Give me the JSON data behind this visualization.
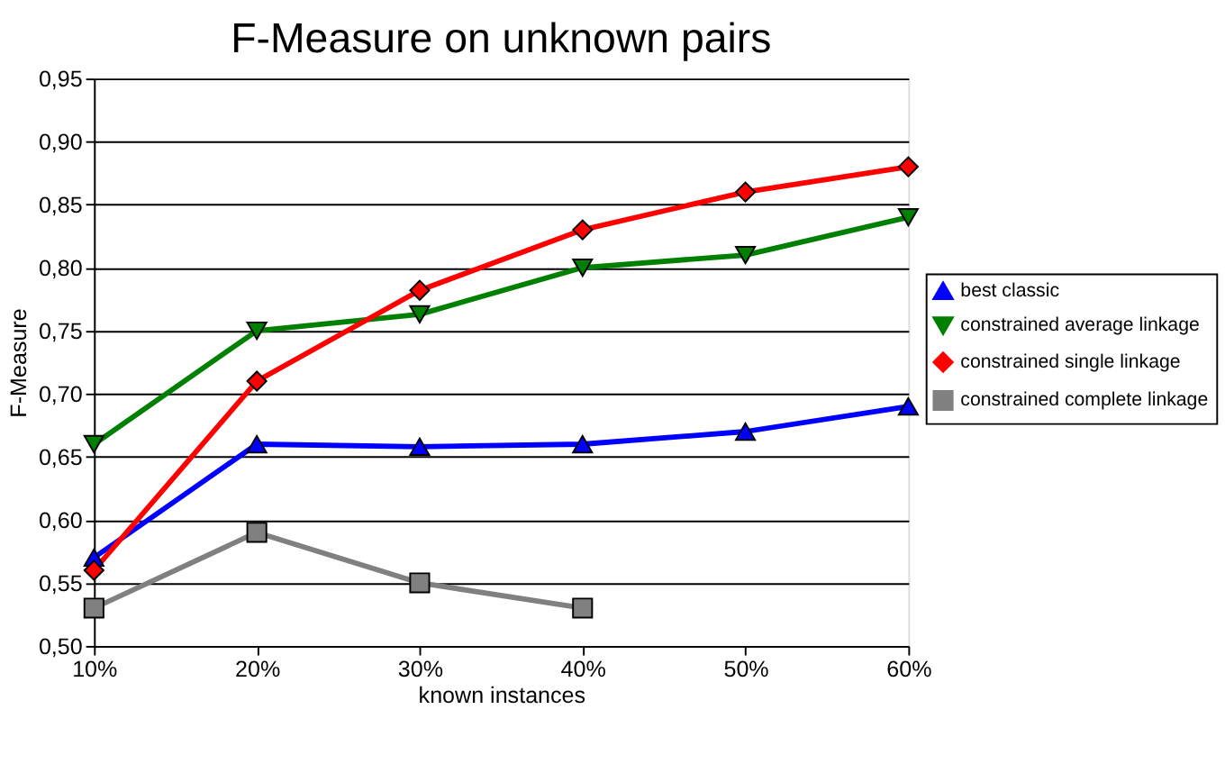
{
  "chart_data": {
    "type": "line",
    "title": "F-Measure on unknown pairs",
    "xlabel": "known instances",
    "ylabel": "F-Measure",
    "categories": [
      "10%",
      "20%",
      "30%",
      "40%",
      "50%",
      "60%"
    ],
    "series": [
      {
        "name": "best classic",
        "color": "#0000ff",
        "marker": "triangle",
        "values": [
          0.57,
          0.66,
          0.658,
          0.66,
          0.67,
          0.69
        ]
      },
      {
        "name": "constrained average linkage",
        "color": "#008000",
        "marker": "triangle-down",
        "values": [
          0.66,
          0.75,
          0.763,
          0.8,
          0.81,
          0.84
        ]
      },
      {
        "name": "constrained single linkage",
        "color": "#ff0000",
        "marker": "diamond",
        "values": [
          0.56,
          0.71,
          0.782,
          0.83,
          0.86,
          0.88
        ]
      },
      {
        "name": "constrained complete linkage",
        "color": "#808080",
        "marker": "square",
        "values": [
          0.53,
          0.59,
          0.55,
          0.53,
          null,
          null
        ]
      }
    ],
    "ylim": [
      0.5,
      0.95
    ],
    "yticks": [
      {
        "value": 0.5,
        "label": "0,50"
      },
      {
        "value": 0.55,
        "label": "0,55"
      },
      {
        "value": 0.6,
        "label": "0,60"
      },
      {
        "value": 0.65,
        "label": "0,65"
      },
      {
        "value": 0.7,
        "label": "0,70"
      },
      {
        "value": 0.75,
        "label": "0,75"
      },
      {
        "value": 0.8,
        "label": "0,80"
      },
      {
        "value": 0.85,
        "label": "0,85"
      },
      {
        "value": 0.9,
        "label": "0,90"
      },
      {
        "value": 0.95,
        "label": "0,95"
      }
    ],
    "grid": "y",
    "legend": "right",
    "line_style": "solid"
  }
}
